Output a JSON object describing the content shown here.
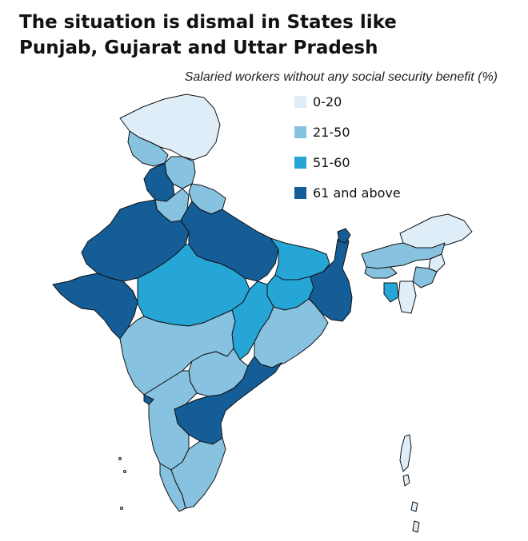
{
  "title_line1": "The situation is dismal in States like",
  "title_line2": "Punjab, Gujarat and Uttar Pradesh",
  "subtitle": "Salaried workers without any social security benefit (%)",
  "legend": [
    {
      "label": "0-20",
      "color": "#deedf8"
    },
    {
      "label": "21-50",
      "color": "#87c2e1"
    },
    {
      "label": "51-60",
      "color": "#26a5d7"
    },
    {
      "label": "61 and above",
      "color": "#155d96"
    }
  ]
}
